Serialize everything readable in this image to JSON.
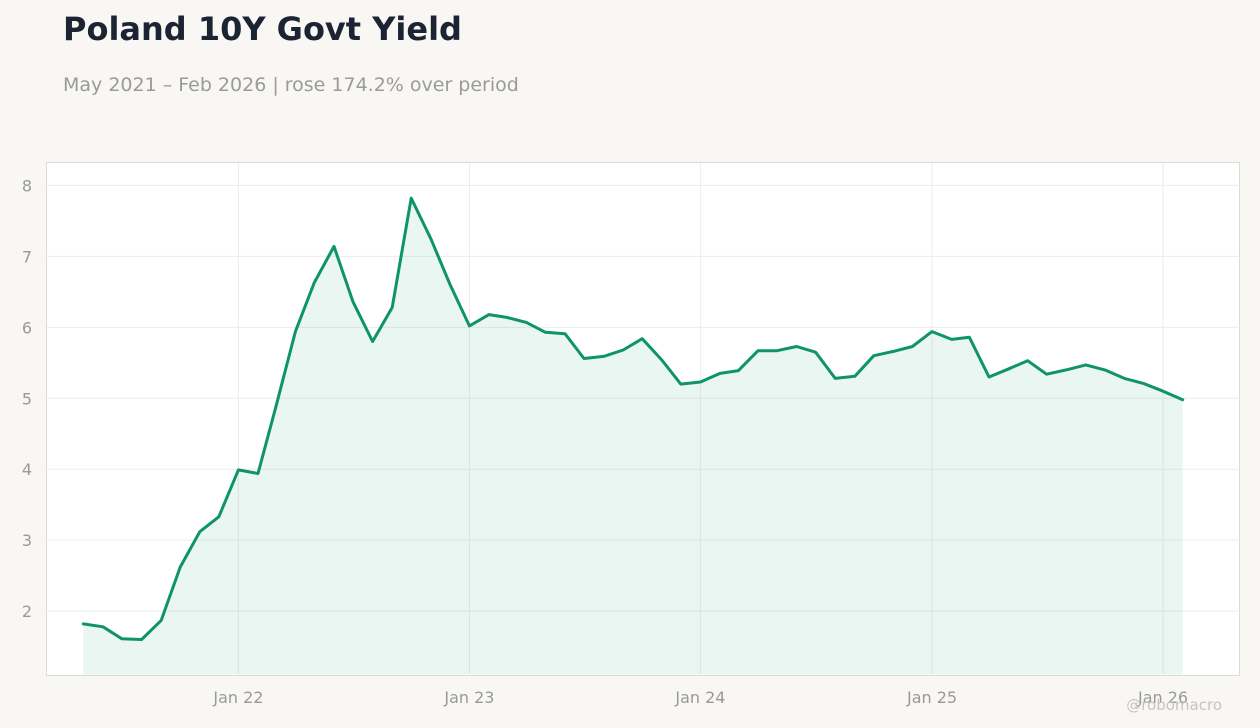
{
  "header": {
    "title": "Poland 10Y Govt Yield",
    "subtitle": "May 2021 – Feb 2026 | rose 174.2% over period"
  },
  "watermark": "@robomacro",
  "colors": {
    "line": "#0e9468",
    "fill": "#0e9468",
    "background": "#f8f7f4",
    "plot_background": "#ffffff",
    "grid": "#ececec",
    "axis_text": "#999999"
  },
  "chart_data": {
    "type": "area",
    "title": "Poland 10Y Govt Yield",
    "subtitle": "May 2021 – Feb 2026 | rose 174.2% over period",
    "xlabel": "",
    "ylabel": "",
    "x_ticks": [
      {
        "label": "Jan 22",
        "date": "2022-01-01"
      },
      {
        "label": "Jan 23",
        "date": "2023-01-01"
      },
      {
        "label": "Jan 24",
        "date": "2024-01-01"
      },
      {
        "label": "Jan 25",
        "date": "2025-01-01"
      },
      {
        "label": "Jan 26",
        "date": "2026-01-01"
      }
    ],
    "y_ticks": [
      2,
      3,
      4,
      5,
      6,
      7,
      8
    ],
    "xlim": [
      "2021-03-03",
      "2026-05-01"
    ],
    "ylim": [
      1.1,
      8.33
    ],
    "grid": true,
    "legend": "none",
    "series": [
      {
        "x": [
          "2021-05-01",
          "2021-06-01",
          "2021-07-01",
          "2021-08-01",
          "2021-09-01",
          "2021-10-01",
          "2021-11-01",
          "2021-12-01",
          "2022-01-01",
          "2022-02-01",
          "2022-03-01",
          "2022-04-01",
          "2022-05-01",
          "2022-06-01",
          "2022-07-01",
          "2022-08-01",
          "2022-09-01",
          "2022-10-01",
          "2022-11-01",
          "2022-12-01",
          "2023-01-01",
          "2023-02-01",
          "2023-03-01",
          "2023-04-01",
          "2023-05-01",
          "2023-06-01",
          "2023-07-01",
          "2023-08-01",
          "2023-09-01",
          "2023-10-01",
          "2023-11-01",
          "2023-12-01",
          "2024-01-01",
          "2024-02-01",
          "2024-03-01",
          "2024-04-01",
          "2024-05-01",
          "2024-06-01",
          "2024-07-01",
          "2024-08-01",
          "2024-09-01",
          "2024-10-01",
          "2024-11-01",
          "2024-12-01",
          "2025-01-01",
          "2025-02-01",
          "2025-03-01",
          "2025-04-01",
          "2025-05-01",
          "2025-06-01",
          "2025-07-01",
          "2025-08-01",
          "2025-09-01",
          "2025-10-01",
          "2025-11-01",
          "2025-12-01",
          "2026-01-01",
          "2026-02-01"
        ],
        "values": [
          1.82,
          1.78,
          1.61,
          1.6,
          1.87,
          2.62,
          3.12,
          3.33,
          3.99,
          3.94,
          4.87,
          5.94,
          6.63,
          7.14,
          6.36,
          5.8,
          6.28,
          7.82,
          7.25,
          6.61,
          6.02,
          6.18,
          6.14,
          6.07,
          5.93,
          5.91,
          5.56,
          5.59,
          5.68,
          5.84,
          5.54,
          5.2,
          5.23,
          5.35,
          5.39,
          5.67,
          5.67,
          5.73,
          5.65,
          5.28,
          5.31,
          5.6,
          5.66,
          5.73,
          5.94,
          5.83,
          5.86,
          5.3,
          5.41,
          5.53,
          5.34,
          5.4,
          5.47,
          5.4,
          5.28,
          5.21,
          5.1,
          4.98
        ]
      }
    ]
  }
}
